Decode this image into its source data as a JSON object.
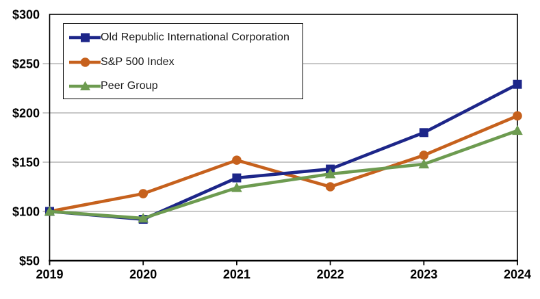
{
  "chart_data": {
    "type": "line",
    "title": "",
    "categories": [
      "2019",
      "2020",
      "2021",
      "2022",
      "2023",
      "2024"
    ],
    "series": [
      {
        "name": "Old Republic International Corporation",
        "marker": "square",
        "color": "#1d2689",
        "values": [
          100,
          92,
          134,
          143,
          180,
          229
        ]
      },
      {
        "name": "S&P 500 Index",
        "marker": "circle",
        "color": "#c6611d",
        "values": [
          100,
          118,
          152,
          125,
          157,
          197
        ]
      },
      {
        "name": "Peer Group",
        "marker": "triangle",
        "color": "#6d9b50",
        "values": [
          100,
          93,
          124,
          138,
          148,
          182
        ]
      }
    ],
    "ylim": [
      50,
      300
    ],
    "y_ticks": [
      300,
      250,
      200,
      150,
      100,
      50
    ],
    "y_tick_prefix": "$",
    "y_tick_labels": [
      "$300",
      "$250",
      "$200",
      "$150",
      "$100",
      "$50"
    ],
    "grid": "horizontal",
    "gridline_color": "#a6a6a6",
    "axis_color": "#000000",
    "background": "#ffffff",
    "legend_position": "top-left-inside",
    "draw_order": [
      1,
      0,
      2
    ]
  }
}
